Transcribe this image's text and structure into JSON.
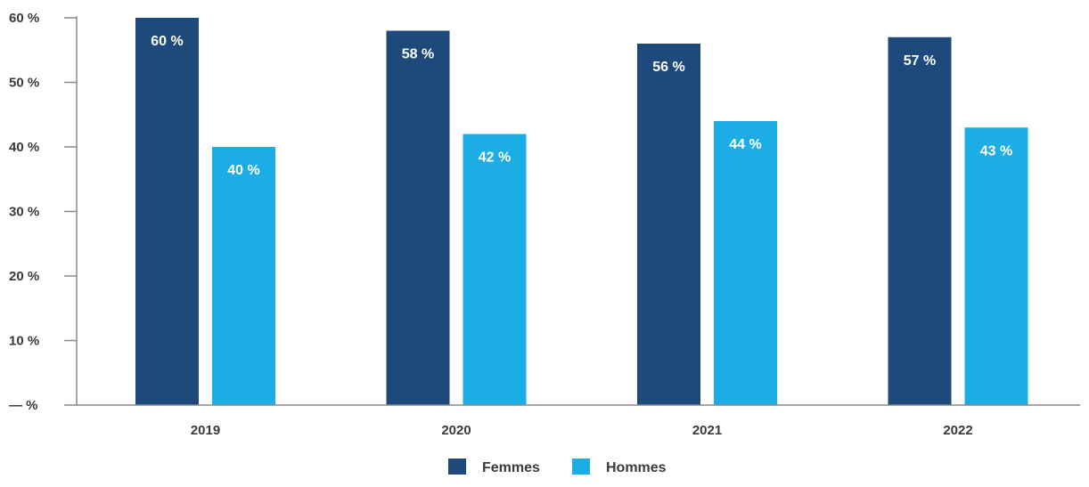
{
  "chart_data": {
    "type": "bar",
    "categories": [
      "2019",
      "2020",
      "2021",
      "2022"
    ],
    "series": [
      {
        "name": "Femmes",
        "values": [
          60,
          58,
          56,
          57
        ],
        "labels": [
          "60 %",
          "58 %",
          "56 %",
          "57 %"
        ],
        "color": "#1e4a7b"
      },
      {
        "name": "Hommes",
        "values": [
          40,
          42,
          44,
          43
        ],
        "labels": [
          "40 %",
          "42 %",
          "44 %",
          "43 %"
        ],
        "color": "#1cade4"
      }
    ],
    "ylim": [
      0,
      60
    ],
    "yticks": [
      0,
      10,
      20,
      30,
      40,
      50,
      60
    ],
    "ytick_labels": [
      "— %",
      "10 %",
      "20 %",
      "30 %",
      "40 %",
      "50 %",
      "60 %"
    ],
    "grid": false,
    "legend": "bottom-center"
  }
}
